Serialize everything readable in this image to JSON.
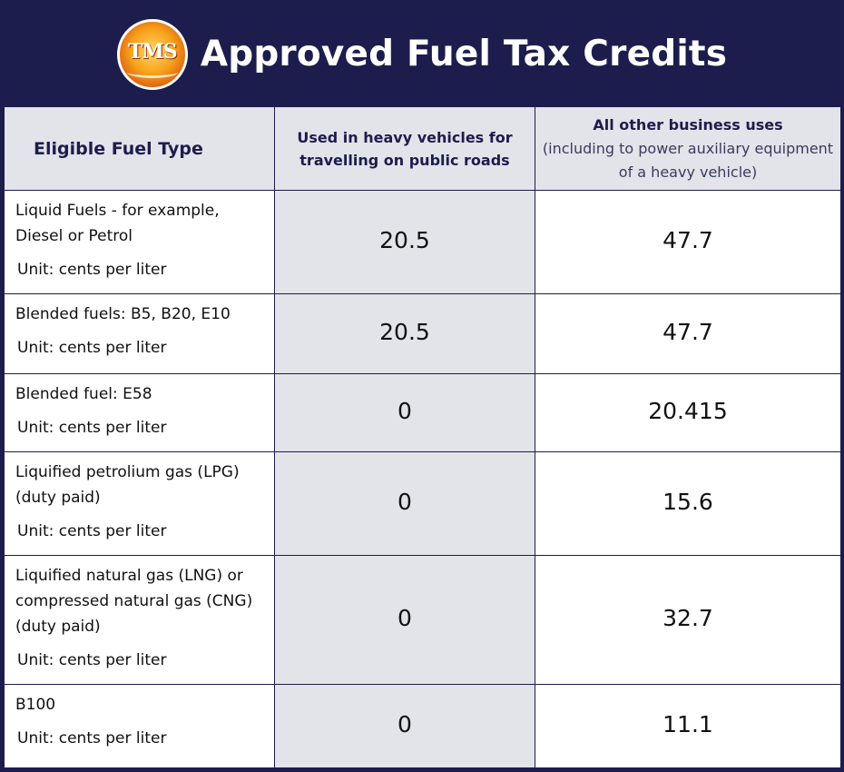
{
  "header": {
    "logo_text": "TMS",
    "title": "Approved Fuel Tax Credits"
  },
  "table": {
    "headers": {
      "fuel_type": "Eligible Fuel Type",
      "heavy": "Used in heavy vehicles for travelling on public roads",
      "other_main": "All other business uses",
      "other_sub": "(including to power auxiliary equipment of a heavy vehicle)"
    },
    "rows": [
      {
        "fuel": "Liquid Fuels -  for example, Diesel or Petrol",
        "unit": "Unit: cents per liter",
        "heavy": "20.5",
        "other": "47.7"
      },
      {
        "fuel": "Blended fuels: B5, B20, E10",
        "unit": "Unit: cents per liter",
        "heavy": "20.5",
        "other": "47.7"
      },
      {
        "fuel": "Blended fuel: E58",
        "unit": "Unit: cents per liter",
        "heavy": "0",
        "other": "20.415"
      },
      {
        "fuel": "Liquified petrolium gas (LPG) (duty paid)",
        "unit": "Unit: cents per liter",
        "heavy": "0",
        "other": "15.6"
      },
      {
        "fuel": "Liquified natural gas (LNG) or compressed natural gas (CNG) (duty paid)",
        "unit": "Unit: cents per liter",
        "heavy": "0",
        "other": "32.7"
      },
      {
        "fuel": "B100",
        "unit": "Unit: cents per liter",
        "heavy": "0",
        "other": "11.1"
      }
    ]
  }
}
